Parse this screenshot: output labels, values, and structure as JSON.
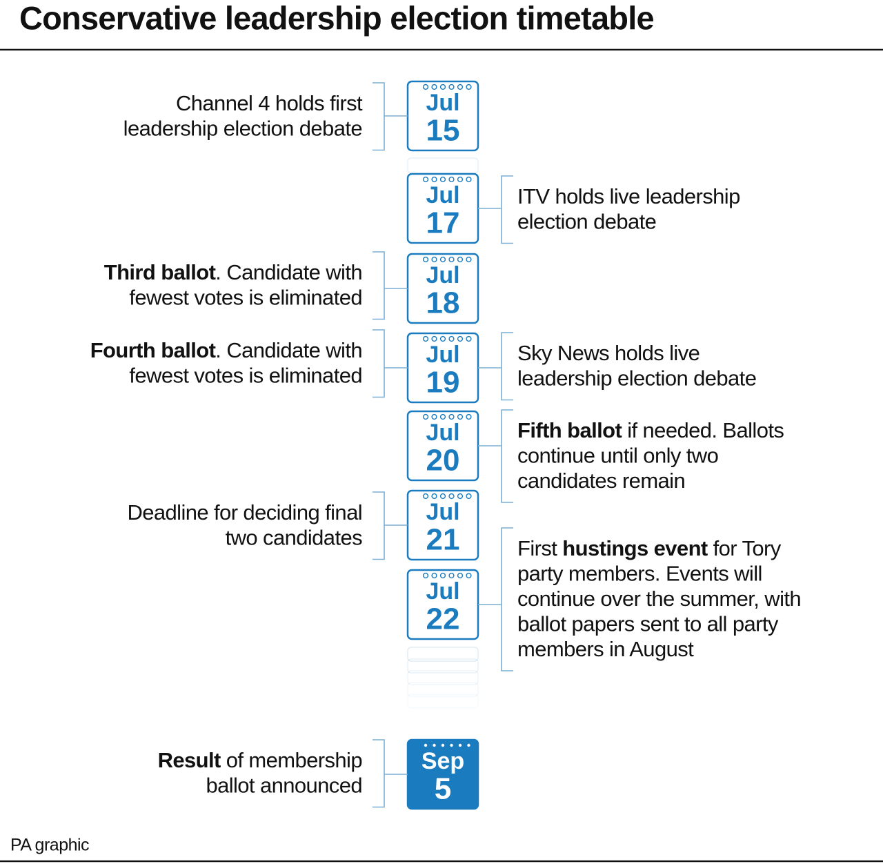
{
  "title": "Conservative leadership election timetable",
  "events": [
    {
      "month": "Jul",
      "day": 15,
      "left": [
        [
          "Channel 4 holds first"
        ],
        [
          "leadership election debate"
        ]
      ]
    },
    {
      "month": "Jul",
      "day": 17,
      "right": [
        [
          "ITV holds live leadership"
        ],
        [
          "election debate"
        ]
      ]
    },
    {
      "month": "Jul",
      "day": 18,
      "left": [
        [
          {
            "bold": "Third ballot"
          },
          ". Candidate with"
        ],
        [
          "fewest votes is eliminated"
        ]
      ]
    },
    {
      "month": "Jul",
      "day": 19,
      "left": [
        [
          {
            "bold": "Fourth ballot"
          },
          ". Candidate with"
        ],
        [
          "fewest votes is eliminated"
        ]
      ],
      "right": [
        [
          "Sky News holds live"
        ],
        [
          "leadership election debate"
        ]
      ]
    },
    {
      "month": "Jul",
      "day": 20,
      "right": [
        [
          {
            "bold": "Fifth ballot"
          },
          " if needed. Ballots"
        ],
        [
          "continue until only two"
        ],
        [
          "candidates remain"
        ]
      ]
    },
    {
      "month": "Jul",
      "day": 21,
      "left": [
        [
          "Deadline for deciding final"
        ],
        [
          "two candidates"
        ]
      ]
    },
    {
      "month": "Jul",
      "day": 22,
      "right": [
        [
          "First ",
          {
            "bold": "hustings event"
          },
          " for Tory"
        ],
        [
          "party members. Events will"
        ],
        [
          "continue over the summer, with"
        ],
        [
          "ballot papers sent to all party"
        ],
        [
          "members in August"
        ]
      ]
    },
    {
      "month": "Sep",
      "day": 5,
      "highlight": true,
      "left": [
        [
          {
            "bold": "Result"
          },
          " of membership"
        ],
        [
          "ballot announced"
        ]
      ]
    }
  ],
  "credit": "PA graphic"
}
